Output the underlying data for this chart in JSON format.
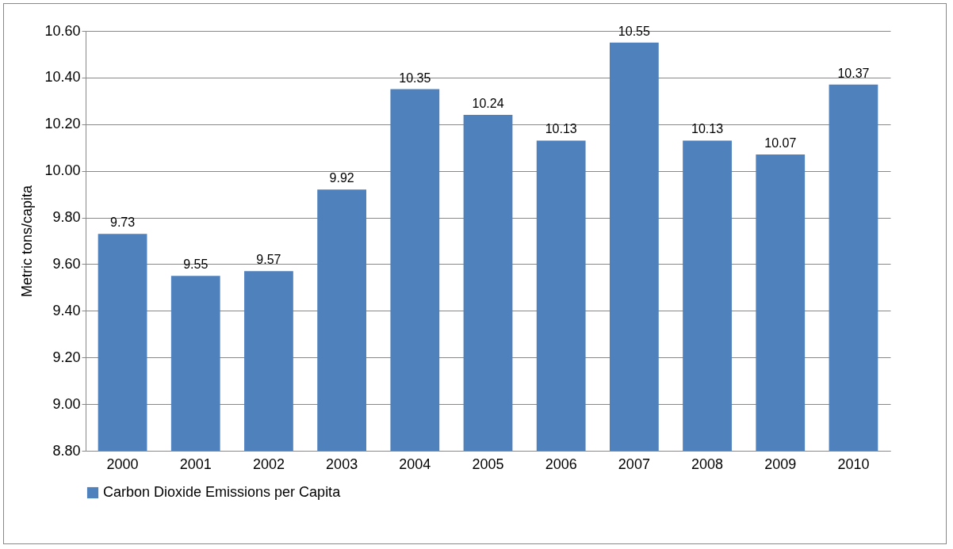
{
  "chart_data": {
    "type": "bar",
    "ylabel": "Metric tons/capita",
    "categories": [
      "2000",
      "2001",
      "2002",
      "2003",
      "2004",
      "2005",
      "2006",
      "2007",
      "2008",
      "2009",
      "2010"
    ],
    "series": [
      {
        "name": "Carbon Dioxide Emissions per Capita",
        "color": "#4f81bd",
        "values": [
          9.73,
          9.55,
          9.57,
          9.92,
          10.35,
          10.24,
          10.13,
          10.55,
          10.13,
          10.07,
          10.37
        ]
      }
    ],
    "ylim": [
      8.8,
      10.6
    ],
    "yticks": [
      {
        "value": 8.8,
        "label": "8.80"
      },
      {
        "value": 9.0,
        "label": "9.00"
      },
      {
        "value": 9.2,
        "label": "9.20"
      },
      {
        "value": 9.4,
        "label": "9.40"
      },
      {
        "value": 9.6,
        "label": "9.60"
      },
      {
        "value": 9.8,
        "label": "9.80"
      },
      {
        "value": 10.0,
        "label": "10.00"
      },
      {
        "value": 10.2,
        "label": "10.20"
      },
      {
        "value": 10.4,
        "label": "10.40"
      },
      {
        "value": 10.6,
        "label": "10.60"
      }
    ],
    "grid": "y",
    "legend": "bottom",
    "data_labels": true
  }
}
